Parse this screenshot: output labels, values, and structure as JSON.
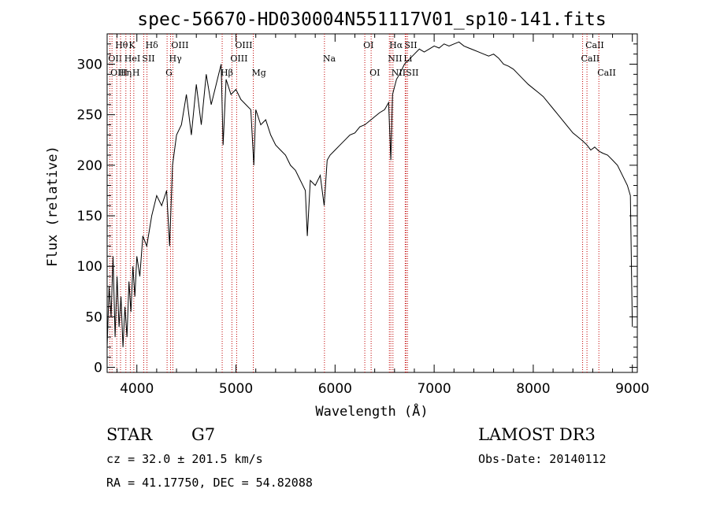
{
  "chart_data": {
    "type": "line",
    "title": "spec-56670-HD030004N551117V01_sp10-141.fits",
    "xlabel": "Wavelength (Å)",
    "ylabel": "Flux (relative)",
    "xlim": [
      3700,
      9050
    ],
    "ylim": [
      -5,
      330
    ],
    "xticks": [
      4000,
      5000,
      6000,
      7000,
      8000,
      9000
    ],
    "yticks": [
      0,
      50,
      100,
      150,
      200,
      250,
      300
    ],
    "series": [
      {
        "color": "#000000",
        "x": [
          3700,
          3720,
          3740,
          3760,
          3780,
          3800,
          3820,
          3840,
          3860,
          3880,
          3900,
          3920,
          3940,
          3960,
          3980,
          4000,
          4030,
          4060,
          4100,
          4150,
          4200,
          4250,
          4300,
          4330,
          4360,
          4400,
          4450,
          4500,
          4550,
          4600,
          4650,
          4700,
          4750,
          4800,
          4850,
          4870,
          4900,
          4950,
          5000,
          5050,
          5100,
          5150,
          5180,
          5200,
          5250,
          5300,
          5350,
          5400,
          5450,
          5500,
          5550,
          5600,
          5650,
          5700,
          5720,
          5750,
          5800,
          5850,
          5890,
          5920,
          5950,
          6000,
          6050,
          6100,
          6150,
          6200,
          6250,
          6300,
          6350,
          6400,
          6450,
          6500,
          6540,
          6563,
          6580,
          6620,
          6650,
          6700,
          6750,
          6800,
          6850,
          6900,
          6950,
          7000,
          7050,
          7100,
          7150,
          7200,
          7250,
          7300,
          7350,
          7400,
          7450,
          7500,
          7550,
          7600,
          7650,
          7700,
          7750,
          7800,
          7850,
          7900,
          7950,
          8000,
          8050,
          8100,
          8150,
          8200,
          8250,
          8300,
          8350,
          8400,
          8450,
          8500,
          8542,
          8580,
          8620,
          8662,
          8700,
          8750,
          8800,
          8850,
          8900,
          8950,
          8980,
          9000
        ],
        "y": [
          20,
          80,
          50,
          110,
          30,
          90,
          40,
          70,
          20,
          60,
          30,
          85,
          55,
          100,
          70,
          110,
          90,
          130,
          120,
          150,
          170,
          160,
          175,
          120,
          200,
          230,
          240,
          270,
          230,
          280,
          240,
          290,
          260,
          280,
          300,
          220,
          285,
          270,
          275,
          265,
          260,
          255,
          200,
          255,
          240,
          245,
          230,
          220,
          215,
          210,
          200,
          195,
          185,
          175,
          130,
          185,
          180,
          190,
          160,
          205,
          210,
          215,
          220,
          225,
          230,
          232,
          238,
          240,
          244,
          248,
          252,
          255,
          262,
          205,
          270,
          285,
          290,
          300,
          305,
          310,
          315,
          312,
          315,
          318,
          316,
          320,
          318,
          320,
          322,
          318,
          316,
          314,
          312,
          310,
          308,
          310,
          306,
          300,
          298,
          295,
          290,
          285,
          280,
          276,
          272,
          268,
          262,
          256,
          250,
          244,
          238,
          232,
          228,
          224,
          220,
          215,
          218,
          214,
          212,
          210,
          205,
          200,
          190,
          180,
          170,
          40
        ]
      }
    ],
    "line_markers": [
      {
        "label": "Hθ",
        "x": 3797,
        "row": 1
      },
      {
        "label": "OII",
        "x": 3727,
        "row": 2
      },
      {
        "label": "OIII",
        "x": 3749,
        "row": 3
      },
      {
        "label": "K",
        "x": 3934,
        "row": 1
      },
      {
        "label": "HeI",
        "x": 3889,
        "row": 2
      },
      {
        "label": "Hη",
        "x": 3835,
        "row": 3
      },
      {
        "label": "SII",
        "x": 4069,
        "row": 2
      },
      {
        "label": "H",
        "x": 3969,
        "row": 3
      },
      {
        "label": "Hδ",
        "x": 4102,
        "row": 1
      },
      {
        "label": "OIII",
        "x": 4363,
        "row": 1
      },
      {
        "label": "Hγ",
        "x": 4340,
        "row": 2
      },
      {
        "label": "G",
        "x": 4305,
        "row": 3
      },
      {
        "label": "OIII",
        "x": 5007,
        "row": 1
      },
      {
        "label": "OIII",
        "x": 4959,
        "row": 2
      },
      {
        "label": "Hβ",
        "x": 4861,
        "row": 3
      },
      {
        "label": "Mg",
        "x": 5175,
        "row": 3
      },
      {
        "label": "Na",
        "x": 5893,
        "row": 2
      },
      {
        "label": "OI",
        "x": 6300,
        "row": 1
      },
      {
        "label": "OI",
        "x": 6364,
        "row": 3
      },
      {
        "label": "Hα",
        "x": 6563,
        "row": 1
      },
      {
        "label": "SII",
        "x": 6716,
        "row": 1
      },
      {
        "label": "NII",
        "x": 6548,
        "row": 2
      },
      {
        "label": "Li",
        "x": 6708,
        "row": 2
      },
      {
        "label": "NII",
        "x": 6584,
        "row": 3
      },
      {
        "label": "SII",
        "x": 6731,
        "row": 3
      },
      {
        "label": "CaII",
        "x": 8542,
        "row": 1
      },
      {
        "label": "CaII",
        "x": 8498,
        "row": 2
      },
      {
        "label": "CaII",
        "x": 8662,
        "row": 3
      }
    ]
  },
  "info": {
    "object_type": "STAR",
    "subclass": "G7",
    "survey": "LAMOST DR3",
    "cz": "cz = 32.0 ± 201.5 km/s",
    "obs_date": "Obs-Date: 20140112",
    "coords": "RA =  41.17750, DEC =  54.82088"
  }
}
